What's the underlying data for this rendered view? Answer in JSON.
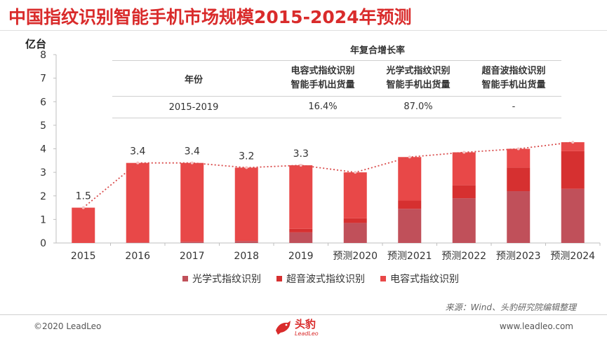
{
  "title": "中国指纹识别智能手机市场规模2015-2024年预测",
  "unit_label": "亿台",
  "colors": {
    "title": "#d92b2b",
    "optical": "#c0505a",
    "ultrasonic": "#d63030",
    "capacitive": "#e84848",
    "trend": "#d94b4b"
  },
  "cagr_table": {
    "title": "年复合增长率",
    "headers": {
      "year": "年份",
      "capacitive_1": "电容式指纹识别",
      "capacitive_2": "智能手机出货量",
      "optical_1": "光学式指纹识别",
      "optical_2": "智能手机出货量",
      "ultrasonic_1": "超音波指纹识别",
      "ultrasonic_2": "智能手机出货量"
    },
    "row": {
      "year": "2015-2019",
      "capacitive": "16.4%",
      "optical": "87.0%",
      "ultrasonic": "-"
    }
  },
  "chart_data": {
    "type": "bar",
    "stacked": true,
    "categories": [
      "2015",
      "2016",
      "2017",
      "2018",
      "2019",
      "预测2020",
      "预测2021",
      "预测2022",
      "预测2023",
      "预测2024"
    ],
    "ylim": [
      0,
      8
    ],
    "yticks": [
      0,
      1,
      2,
      3,
      4,
      5,
      6,
      7,
      8
    ],
    "ylabel": "亿台",
    "series": [
      {
        "name": "光学式指纹识别",
        "values": [
          0,
          0.02,
          0.05,
          0.08,
          0.45,
          0.85,
          1.45,
          1.9,
          2.2,
          2.3
        ]
      },
      {
        "name": "超音波式指纹识别",
        "values": [
          0,
          0,
          0,
          0,
          0.15,
          0.2,
          0.35,
          0.55,
          1.0,
          1.6
        ]
      },
      {
        "name": "电容式指纹识别",
        "values": [
          1.5,
          3.38,
          3.35,
          3.12,
          2.7,
          1.95,
          1.85,
          1.4,
          0.8,
          0.38
        ]
      }
    ],
    "totals": [
      1.5,
      3.4,
      3.4,
      3.2,
      3.3,
      3.0,
      3.65,
      3.85,
      4.0,
      4.28
    ],
    "data_labels": [
      "1.5",
      "3.4",
      "3.4",
      "3.2",
      "3.3"
    ],
    "legend_position": "bottom",
    "grid": false
  },
  "legend": [
    "光学式指纹识别",
    "超音波式指纹识别",
    "电容式指纹识别"
  ],
  "source": "来源：Wind、头豹研究院编辑整理",
  "footer": {
    "copyright": "©2020 LeadLeo",
    "website": "www.leadleo.com",
    "logo_text": "头豹",
    "logo_sub": "LeadLeo"
  }
}
